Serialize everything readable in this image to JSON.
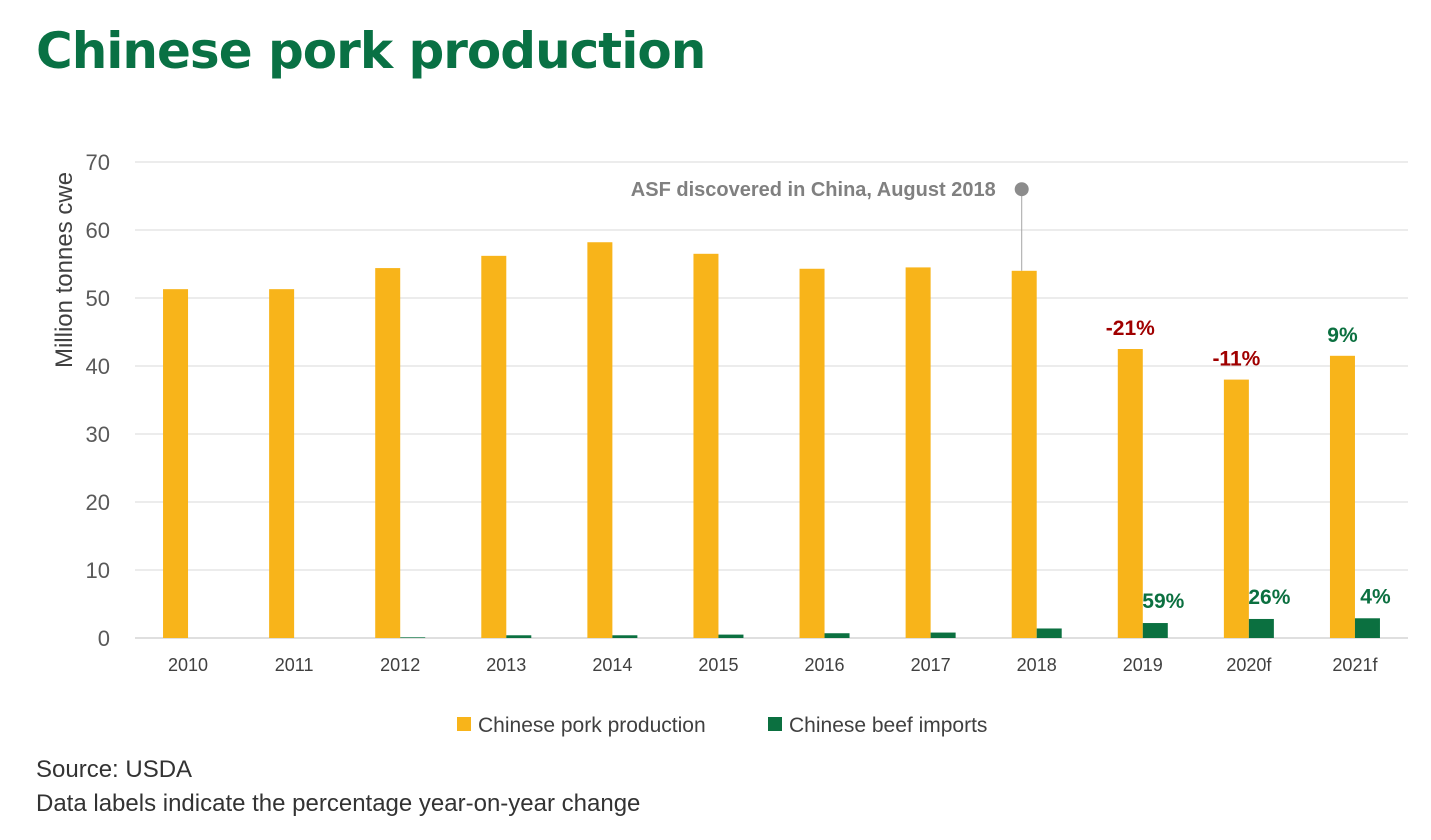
{
  "title": "Chinese pork production",
  "source": "Source: USDA",
  "note": "Data labels indicate the percentage year-on-year change",
  "colors": {
    "pork": "#F8B41A",
    "beef": "#0B7040",
    "negative": "#A00000",
    "positive": "#0B7040",
    "title": "#097144",
    "annotation": "#808080"
  },
  "chart_data": {
    "type": "bar",
    "categories": [
      "2010",
      "2011",
      "2012",
      "2013",
      "2014",
      "2015",
      "2016",
      "2017",
      "2018",
      "2019",
      "2020f",
      "2021f"
    ],
    "series": [
      {
        "name": "Chinese pork production",
        "values": [
          51.3,
          51.3,
          54.4,
          56.2,
          58.2,
          56.5,
          54.3,
          54.5,
          54.0,
          42.5,
          38.0,
          41.5
        ],
        "labels": [
          null,
          null,
          null,
          null,
          null,
          null,
          null,
          null,
          null,
          "-21%",
          "-11%",
          "9%"
        ]
      },
      {
        "name": "Chinese beef imports",
        "values": [
          0.0,
          0.0,
          0.1,
          0.4,
          0.4,
          0.5,
          0.7,
          0.8,
          1.4,
          2.2,
          2.8,
          2.9
        ],
        "labels": [
          null,
          null,
          null,
          null,
          null,
          null,
          null,
          null,
          null,
          "59%",
          "26%",
          "4%"
        ]
      }
    ],
    "ylabel": "Million tonnes cwe",
    "ylim": [
      0,
      70
    ],
    "yticks": [
      0,
      10,
      20,
      30,
      40,
      50,
      60,
      70
    ],
    "grid": true,
    "legend": "bottom",
    "annotation": {
      "text": "ASF discovered in China, August 2018",
      "category": "2018",
      "value": 66
    }
  }
}
